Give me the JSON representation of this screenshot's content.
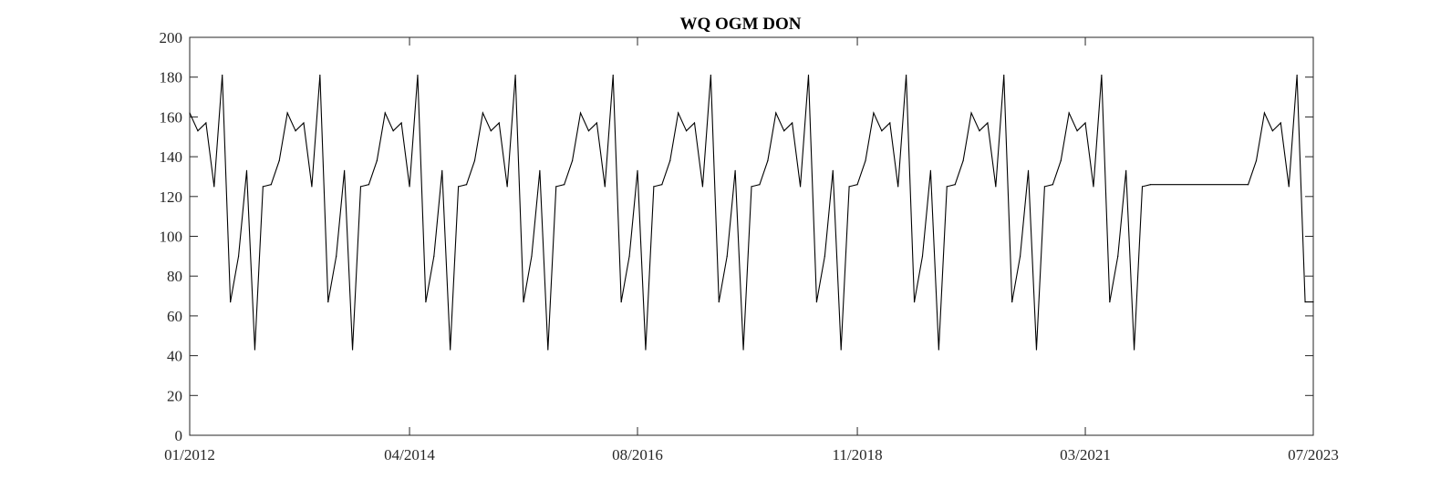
{
  "chart_data": {
    "type": "line",
    "title": "WQ OGM DON",
    "xlabel": "",
    "ylabel": "",
    "xlim": [
      "2012-01",
      "2023-07"
    ],
    "ylim": [
      0,
      200
    ],
    "x_tick_labels": [
      "01/2012",
      "04/2014",
      "08/2016",
      "11/2018",
      "03/2021",
      "07/2023"
    ],
    "y_tick_labels": [
      "0",
      "20",
      "40",
      "60",
      "80",
      "100",
      "120",
      "140",
      "160",
      "180",
      "200"
    ],
    "grid": false,
    "line_color": "#000000",
    "series": [
      {
        "x": [
          "2012-01",
          "2012-02",
          "2012-03",
          "2012-04",
          "2012-05",
          "2012-06",
          "2012-07",
          "2012-08",
          "2012-09",
          "2012-10",
          "2012-11",
          "2012-12",
          "2013-01",
          "2013-02",
          "2013-03",
          "2013-04",
          "2013-05",
          "2013-06",
          "2013-07",
          "2013-08",
          "2013-09",
          "2013-10",
          "2013-11",
          "2013-12",
          "2014-01",
          "2014-02",
          "2014-03",
          "2014-04",
          "2014-05",
          "2014-06",
          "2014-07",
          "2014-08",
          "2014-09",
          "2014-10",
          "2014-11",
          "2014-12",
          "2015-01",
          "2015-02",
          "2015-03",
          "2015-04",
          "2015-05",
          "2015-06",
          "2015-07",
          "2015-08",
          "2015-09",
          "2015-10",
          "2015-11",
          "2015-12",
          "2016-01",
          "2016-02",
          "2016-03",
          "2016-04",
          "2016-05",
          "2016-06",
          "2016-07",
          "2016-08",
          "2016-09",
          "2016-10",
          "2016-11",
          "2016-12",
          "2017-01",
          "2017-02",
          "2017-03",
          "2017-04",
          "2017-05",
          "2017-06",
          "2017-07",
          "2017-08",
          "2017-09",
          "2017-10",
          "2017-11",
          "2017-12",
          "2018-01",
          "2018-02",
          "2018-03",
          "2018-04",
          "2018-05",
          "2018-06",
          "2018-07",
          "2018-08",
          "2018-09",
          "2018-10",
          "2018-11",
          "2018-12",
          "2019-01",
          "2019-02",
          "2019-03",
          "2019-04",
          "2019-05",
          "2019-06",
          "2019-07",
          "2019-08",
          "2019-09",
          "2019-10",
          "2019-11",
          "2019-12",
          "2020-01",
          "2020-02",
          "2020-03",
          "2020-04",
          "2020-05",
          "2020-06",
          "2020-07",
          "2020-08",
          "2020-09",
          "2020-10",
          "2020-11",
          "2020-12",
          "2021-01",
          "2021-02",
          "2021-03",
          "2021-04",
          "2021-05",
          "2021-06",
          "2021-07",
          "2021-08",
          "2021-09",
          "2021-10",
          "2021-11",
          "2022-11",
          "2022-12",
          "2023-01",
          "2023-02",
          "2023-03",
          "2023-04",
          "2023-05",
          "2023-06",
          "2023-07"
        ],
        "y": [
          162,
          153,
          157,
          125,
          181,
          67,
          90,
          133,
          43,
          125,
          126,
          138,
          162,
          153,
          157,
          125,
          181,
          67,
          90,
          133,
          43,
          125,
          126,
          138,
          162,
          153,
          157,
          125,
          181,
          67,
          90,
          133,
          43,
          125,
          126,
          138,
          162,
          153,
          157,
          125,
          181,
          67,
          90,
          133,
          43,
          125,
          126,
          138,
          162,
          153,
          157,
          125,
          181,
          67,
          90,
          133,
          43,
          125,
          126,
          138,
          162,
          153,
          157,
          125,
          181,
          67,
          90,
          133,
          43,
          125,
          126,
          138,
          162,
          153,
          157,
          125,
          181,
          67,
          90,
          133,
          43,
          125,
          126,
          138,
          162,
          153,
          157,
          125,
          181,
          67,
          90,
          133,
          43,
          125,
          126,
          138,
          162,
          153,
          157,
          125,
          181,
          67,
          90,
          133,
          43,
          125,
          126,
          138,
          162,
          153,
          157,
          125,
          181,
          67,
          90,
          133,
          43,
          125,
          126,
          126,
          138,
          162,
          153,
          157,
          125,
          181,
          67,
          67
        ]
      }
    ]
  }
}
